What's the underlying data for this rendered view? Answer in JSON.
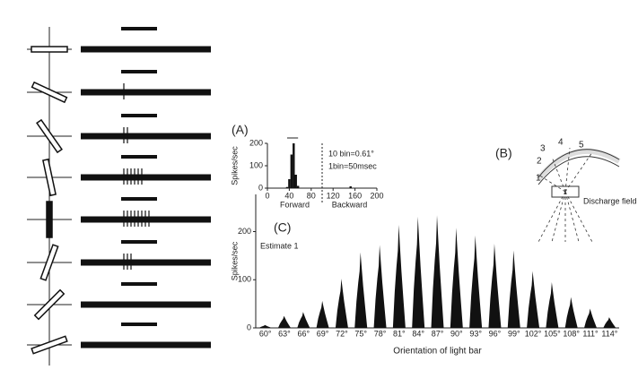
{
  "chart_data": [
    {
      "type": "bar",
      "panel_label": "(A)",
      "y_label": "Spikes/sec",
      "x": [
        36,
        40,
        44,
        48,
        52,
        56,
        152
      ],
      "values": [
        5,
        40,
        150,
        200,
        60,
        10,
        8
      ],
      "color": "#111111",
      "xlim": [
        0,
        200
      ],
      "xticks": [
        0,
        40,
        80,
        120,
        160,
        200
      ],
      "ylim": [
        0,
        200
      ],
      "yticks": [
        0,
        100,
        200
      ],
      "direction_labels": [
        "Forward",
        "Backward"
      ],
      "notes": [
        "10 bin=0.61°",
        "1bin=50msec"
      ]
    },
    {
      "type": "bar",
      "panel_label": "(C)",
      "y_label": "Spikes/sec",
      "x_label": "Orientation of light bar",
      "annotation": "Estimate 1",
      "categories": [
        "60°",
        "63°",
        "66°",
        "69°",
        "72°",
        "75°",
        "78°",
        "81°",
        "84°",
        "87°",
        "90°",
        "93°",
        "96°",
        "99°",
        "102°",
        "105°",
        "108°",
        "111°",
        "114°"
      ],
      "values": [
        6,
        25,
        33,
        56,
        102,
        157,
        172,
        214,
        231,
        234,
        208,
        192,
        175,
        161,
        118,
        95,
        64,
        40,
        22
      ],
      "color": "#111111",
      "ylim": [
        0,
        240
      ],
      "yticks": [
        0,
        100,
        200
      ]
    }
  ],
  "diagram_b": {
    "panel_label": "(B)",
    "positions": [
      "1",
      "2",
      "3",
      "4",
      "5"
    ],
    "field_label": "Discharge field"
  }
}
